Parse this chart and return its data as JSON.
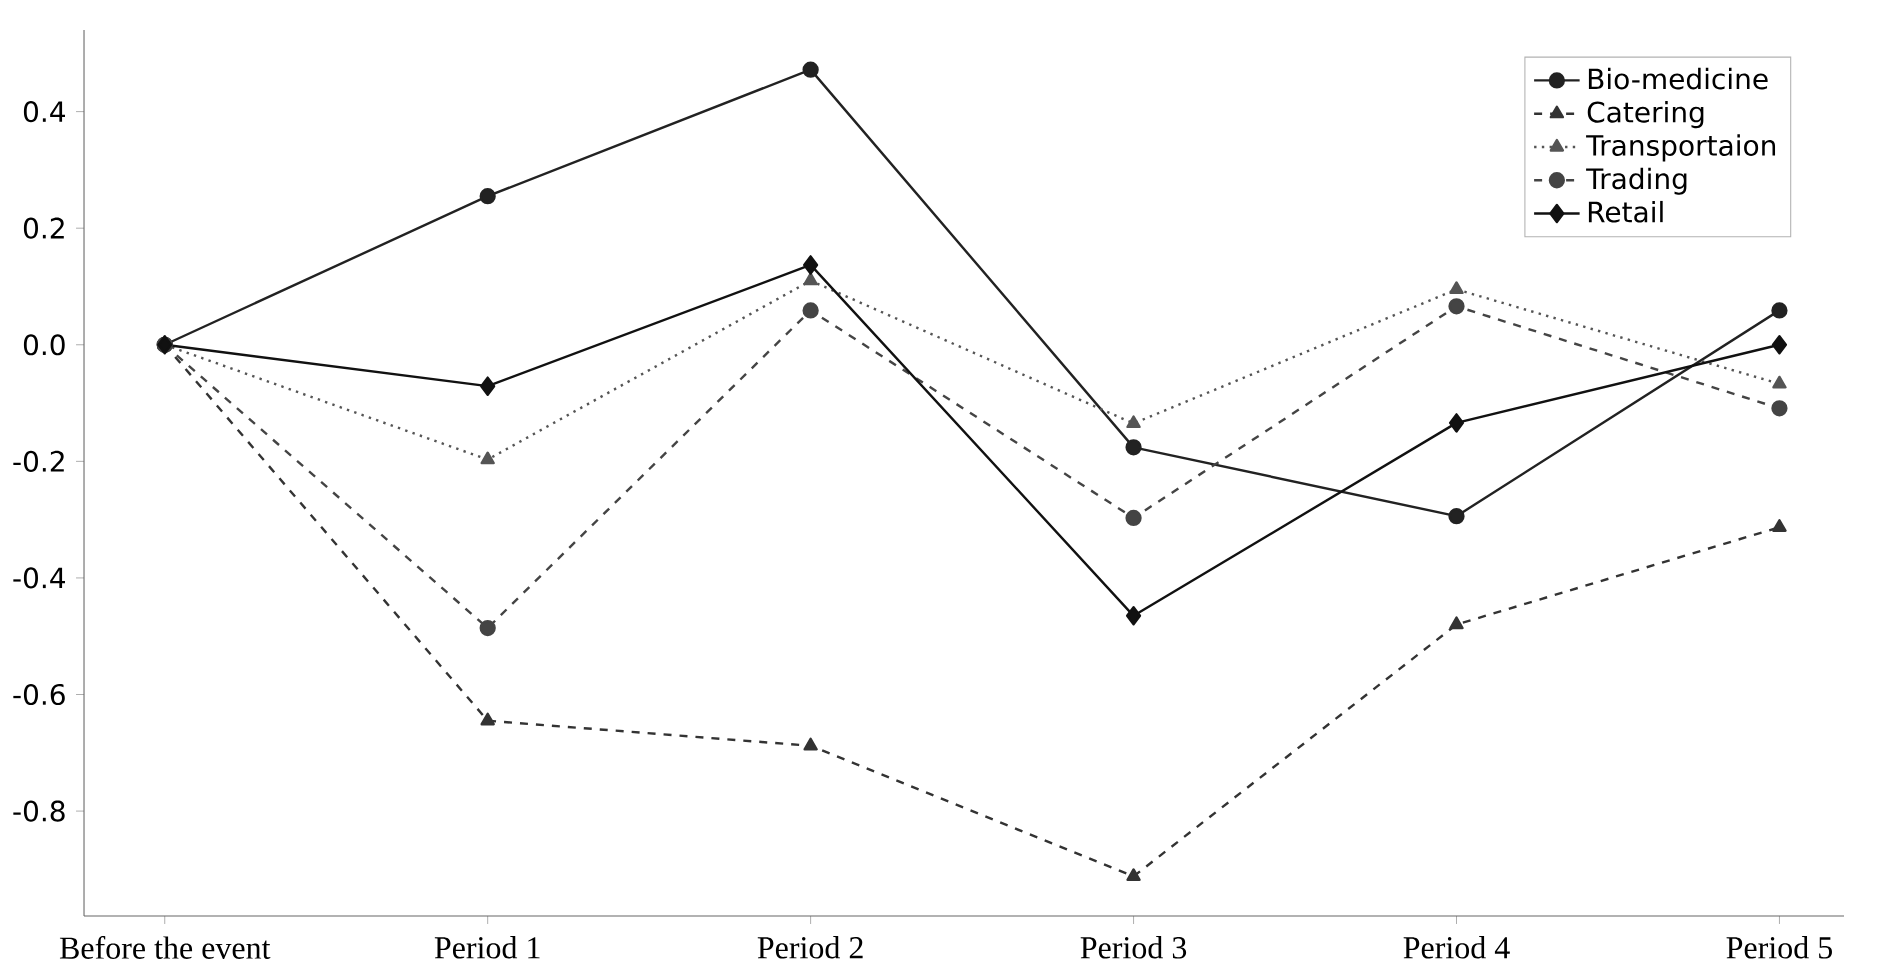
{
  "chart_data": {
    "type": "line",
    "categories": [
      "Before the event",
      "Period 1",
      "Period 2",
      "Period 3",
      "Period 4",
      "Period 5"
    ],
    "series": [
      {
        "name": "Bio-medicine",
        "color": "#222222",
        "marker": "circle",
        "line_style": "solid",
        "values": [
          0,
          0.255,
          0.472,
          -0.176,
          -0.294,
          0.059
        ]
      },
      {
        "name": "Catering",
        "color": "#333333",
        "marker": "triangle",
        "line_style": "dashed",
        "values": [
          0,
          -0.645,
          -0.688,
          -0.912,
          -0.48,
          -0.313
        ]
      },
      {
        "name": "Transportaion",
        "color": "#555555",
        "marker": "triangle",
        "line_style": "dotted",
        "values": [
          0,
          -0.197,
          0.11,
          -0.135,
          0.095,
          -0.067
        ]
      },
      {
        "name": "Trading",
        "color": "#444444",
        "marker": "circle",
        "line_style": "dashed",
        "values": [
          0,
          -0.486,
          0.059,
          -0.297,
          0.066,
          -0.109
        ]
      },
      {
        "name": "Retail",
        "color": "#111111",
        "marker": "diamond",
        "line_style": "solid",
        "values": [
          0,
          -0.071,
          0.137,
          -0.465,
          -0.134,
          0.0
        ]
      }
    ],
    "ylim": [
      -0.98,
      0.54
    ],
    "yticks": [
      -0.8,
      -0.6,
      -0.4,
      -0.2,
      {
        "value": 0,
        "label": "0.0"
      },
      0.2,
      0.4
    ],
    "legend": "top right",
    "grid": false
  }
}
